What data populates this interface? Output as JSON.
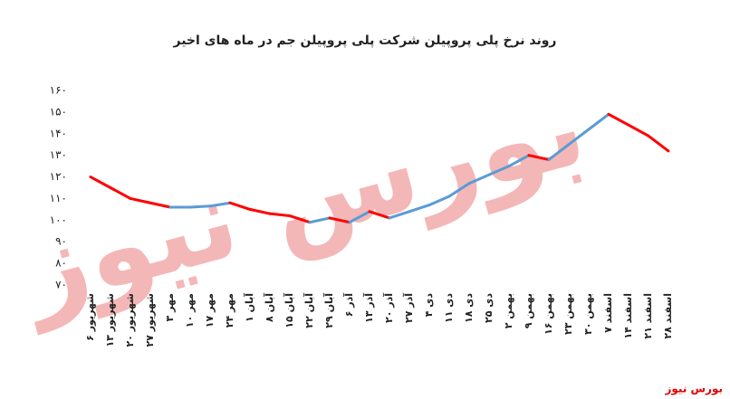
{
  "chart_data": {
    "type": "line",
    "title": "روند نرخ پلی پروپیلن شرکت پلی پروپیلن جم در ماه های اخیر",
    "watermark": "بورس نیوز",
    "source": "بورس نیوز",
    "categories": [
      "۶ شهریور",
      "۱۳ شهریور",
      "۲۰ شهریور",
      "۲۷ شهریور",
      "۳ مهر",
      "۱۰ مهر",
      "۱۷ مهر",
      "۲۴ مهر",
      "۱ آبان",
      "۸ آبان",
      "۱۵ آبان",
      "۲۲ آبان",
      "۲۹ آبان",
      "۶ آذر",
      "۱۳ آذر",
      "۲۰ آذر",
      "۲۷ آذر",
      "۴ دی",
      "۱۱ دی",
      "۱۸ دی",
      "۲۵ دی",
      "۲ بهمن",
      "۹ بهمن",
      "۱۶ بهمن",
      "۲۳ بهمن",
      "۳۰ بهمن",
      "۷ اسفند",
      "۱۴ اسفند",
      "۲۱ اسفند",
      "۲۸ اسفند"
    ],
    "values": [
      120,
      115,
      110,
      108,
      106,
      106,
      106.5,
      108,
      105,
      103,
      102,
      99,
      101,
      99,
      104,
      101,
      104,
      107,
      111,
      117,
      121,
      125,
      130,
      128,
      135,
      142,
      149,
      144,
      139,
      132
    ],
    "rise_color": "#5b9bd5",
    "fall_color": "#ff0000",
    "ylim": [
      70,
      160
    ],
    "yticks": [
      {
        "value": 70,
        "label": "۷۰"
      },
      {
        "value": 80,
        "label": "۸۰"
      },
      {
        "value": 90,
        "label": "۹۰"
      },
      {
        "value": 100,
        "label": "۱۰۰"
      },
      {
        "value": 110,
        "label": "۱۱۰"
      },
      {
        "value": 120,
        "label": "۱۲۰"
      },
      {
        "value": 130,
        "label": "۱۳۰"
      },
      {
        "value": 140,
        "label": "۱۴۰"
      },
      {
        "value": 150,
        "label": "۱۵۰"
      },
      {
        "value": 160,
        "label": "۱۶۰"
      }
    ],
    "grid": false
  }
}
